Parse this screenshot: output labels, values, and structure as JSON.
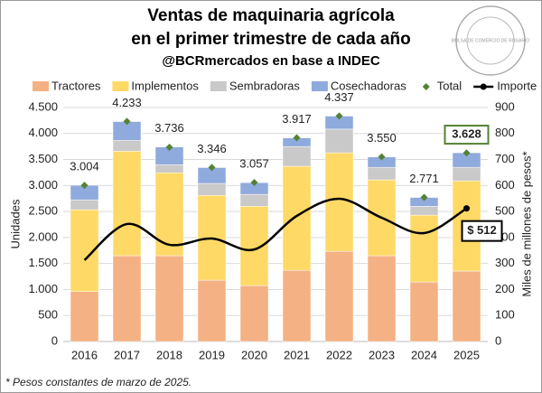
{
  "chart_data": {
    "type": "bar",
    "stacked": true,
    "title": [
      "Ventas de maquinaria agrícola",
      "en el primer trimestre de cada año"
    ],
    "subtitle": "@BCRmercados en base a INDEC",
    "logo_text": "BOLSA DE COMERCIO DE ROSARIO",
    "footnote": "* Pesos constantes de marzo de 2025.",
    "y_label": "Unidades",
    "y2_label": "Miles de millones de pesos*",
    "categories": [
      "2016",
      "2017",
      "2018",
      "2019",
      "2020",
      "2021",
      "2022",
      "2023",
      "2024",
      "2025"
    ],
    "series": [
      {
        "name": "Tractores",
        "type": "bar",
        "color": "#f4b183",
        "values": [
          960,
          1650,
          1650,
          1180,
          1075,
          1370,
          1735,
          1650,
          1145,
          1355
        ]
      },
      {
        "name": "Implementos",
        "type": "bar",
        "color": "#ffd966",
        "values": [
          1575,
          2010,
          1595,
          1630,
          1525,
          2000,
          1895,
          1460,
          1285,
          1735
        ]
      },
      {
        "name": "Sembradoras",
        "type": "bar",
        "color": "#c9c9c9",
        "values": [
          190,
          210,
          155,
          230,
          230,
          380,
          455,
          240,
          170,
          260
        ]
      },
      {
        "name": "Cosechadoras",
        "type": "bar",
        "color": "#8faadc",
        "values": [
          280,
          360,
          340,
          305,
          225,
          165,
          250,
          200,
          170,
          280
        ]
      },
      {
        "name": "Total",
        "type": "marker",
        "color": "#548235",
        "highlight": "2025",
        "values": [
          3004,
          4233,
          3736,
          3346,
          3057,
          3917,
          4337,
          3550,
          2771,
          3628
        ],
        "value_labels": [
          "3.004",
          "4.233",
          "3.736",
          "3.346",
          "3.057",
          "3.917",
          "4.337",
          "3.550",
          "2.771",
          "3.628"
        ]
      },
      {
        "name": "Importe",
        "type": "line",
        "axis": "y2",
        "color": "#000000",
        "values": [
          313,
          452,
          372,
          396,
          354,
          483,
          549,
          476,
          417,
          512
        ],
        "value_labels": [
          null,
          null,
          null,
          null,
          null,
          null,
          null,
          null,
          null,
          "$ 512"
        ]
      }
    ],
    "ylim": [
      0,
      4500
    ],
    "yticks": [
      0,
      {
        "value": 500,
        "label": "500"
      },
      {
        "value": 1000,
        "label": "1.000"
      },
      {
        "value": 1500,
        "label": "1.500"
      },
      {
        "value": 2000,
        "label": "2.000"
      },
      {
        "value": 2500,
        "label": "2.500"
      },
      {
        "value": 3000,
        "label": "3.000"
      },
      {
        "value": 3500,
        "label": "3.500"
      },
      {
        "value": 4000,
        "label": "4.000"
      },
      {
        "value": 4500,
        "label": "4.500"
      }
    ],
    "y2lim": [
      0,
      900
    ],
    "y2ticks": [
      0,
      100,
      200,
      300,
      400,
      500,
      600,
      700,
      800,
      900
    ],
    "grid": true
  }
}
